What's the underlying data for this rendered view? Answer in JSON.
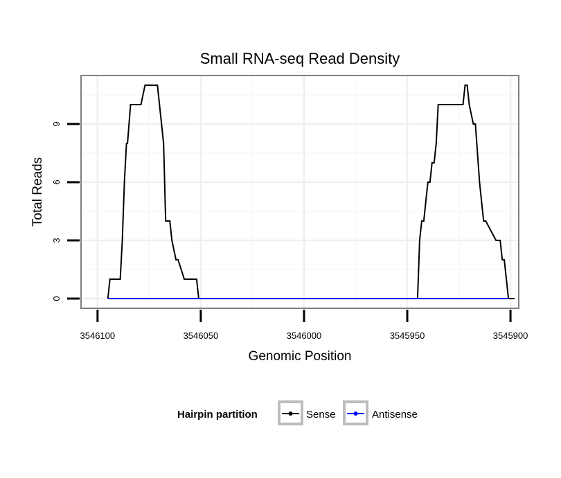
{
  "chart_data": {
    "type": "line",
    "title": "Small RNA-seq Read Density",
    "xlabel": "Genomic Position",
    "ylabel": "Total Reads",
    "xlim": [
      3546108,
      3545896
    ],
    "ylim": [
      -0.5,
      11.5
    ],
    "x_reversed": true,
    "x_ticks": [
      3546100,
      3546050,
      3546000,
      3545950,
      3545900
    ],
    "x_tick_labels": [
      "3546100",
      "3546050",
      "3546000",
      "3545950",
      "3545900"
    ],
    "y_ticks": [
      0,
      3,
      6,
      9
    ],
    "y_tick_labels": [
      "0",
      "3",
      "6",
      "9"
    ],
    "grid": true,
    "legend": {
      "title": "Hairpin partition",
      "position": "bottom",
      "entries": [
        "Sense",
        "Antisense"
      ]
    },
    "series": [
      {
        "name": "Sense",
        "color": "#000000",
        "x": [
          3546095,
          3546094,
          3546089,
          3546088,
          3546087,
          3546086,
          3546085.5,
          3546084,
          3546083,
          3546079,
          3546077,
          3546076,
          3546071,
          3546068,
          3546067,
          3546065,
          3546064,
          3546062,
          3546061,
          3546058,
          3546057,
          3546052,
          3546051,
          3545945,
          3545944,
          3545943,
          3545942,
          3545941,
          3545940,
          3545939,
          3545938,
          3545937,
          3545936,
          3545935,
          3545934,
          3545933,
          3545923,
          3545922,
          3545921,
          3545920,
          3545918,
          3545917,
          3545915,
          3545914,
          3545913,
          3545912,
          3545907,
          3545906,
          3545905,
          3545904,
          3545903,
          3545902,
          3545901,
          3545898
        ],
        "values": [
          0,
          1,
          1,
          3,
          6,
          8,
          8,
          10,
          10,
          10,
          11,
          11,
          11,
          8,
          4,
          4,
          3,
          2,
          2,
          1,
          1,
          1,
          0,
          0,
          3,
          4,
          4,
          5,
          6,
          6,
          7,
          7,
          8,
          10,
          10,
          10,
          10,
          11,
          11,
          10,
          9,
          9,
          6,
          5,
          4,
          4,
          3,
          3,
          3,
          2,
          2,
          1,
          0,
          0
        ]
      },
      {
        "name": "Antisense",
        "color": "#0000ff",
        "x": [
          3546095,
          3546051,
          3545945,
          3545901
        ],
        "values": [
          0,
          0,
          0,
          0
        ]
      }
    ]
  }
}
